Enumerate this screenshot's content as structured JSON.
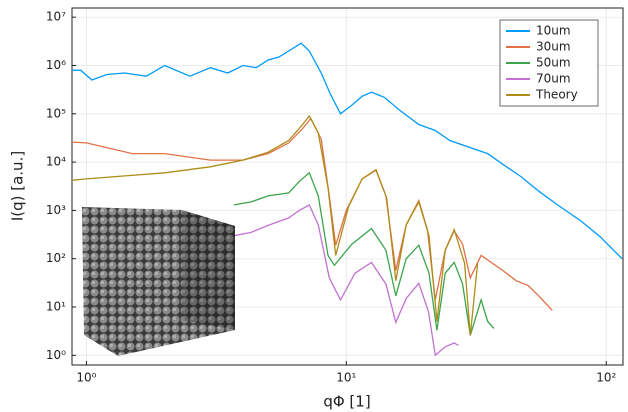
{
  "chart_data": {
    "type": "line",
    "xlabel": "qΦ [1]",
    "ylabel": "I(q) [a.u.]",
    "xscale": "log",
    "yscale": "log",
    "grid": true,
    "legend": "top-right",
    "xlim": [
      0.88,
      116
    ],
    "ylim": [
      0.63,
      15500000
    ],
    "xticks": [
      {
        "value": 1,
        "label": "10⁰"
      },
      {
        "value": 10,
        "label": "10¹"
      },
      {
        "value": 100,
        "label": "10²"
      }
    ],
    "yticks": [
      {
        "value": 1,
        "label": "10⁰"
      },
      {
        "value": 10,
        "label": "10¹"
      },
      {
        "value": 100,
        "label": "10²"
      },
      {
        "value": 1000,
        "label": "10³"
      },
      {
        "value": 10000,
        "label": "10⁴"
      },
      {
        "value": 100000,
        "label": "10⁵"
      },
      {
        "value": 1000000,
        "label": "10⁶"
      },
      {
        "value": 10000000,
        "label": "10⁷"
      }
    ],
    "series": [
      {
        "name": "10um",
        "color": "#009af9",
        "x": [
          0.88,
          0.95,
          1.05,
          1.2,
          1.4,
          1.7,
          2.0,
          2.5,
          3.0,
          3.5,
          4.0,
          4.5,
          5.0,
          5.5,
          6.0,
          6.7,
          7.2,
          8.0,
          8.7,
          9.5,
          10.5,
          11.5,
          12.5,
          14,
          16,
          19,
          22,
          25,
          30,
          35,
          40,
          47,
          55,
          65,
          80,
          95,
          115
        ],
        "values": [
          800000,
          800000,
          500000,
          650000,
          700000,
          600000,
          1000000,
          600000,
          900000,
          700000,
          1000000,
          900000,
          1300000,
          1500000,
          2000000,
          2900000,
          2000000,
          700000,
          250000,
          100000,
          150000,
          230000,
          280000,
          220000,
          120000,
          60000,
          45000,
          28000,
          20000,
          15000,
          9000,
          5000,
          2500,
          1300,
          600,
          280,
          100
        ]
      },
      {
        "name": "30um",
        "color": "#e26f46",
        "x": [
          0.88,
          1.0,
          1.5,
          2.0,
          3.0,
          4.0,
          5.0,
          6.0,
          6.8,
          7.3,
          8.0,
          8.6,
          9.1,
          10.0,
          11.5,
          13,
          14.2,
          15.5,
          17,
          19,
          20.5,
          22,
          24,
          26,
          28,
          30,
          33,
          40,
          45,
          50,
          55,
          62
        ],
        "values": [
          26000,
          25000,
          15000,
          15000,
          11000,
          11000,
          15000,
          25000,
          50000,
          80000,
          30000,
          2000,
          190,
          1000,
          4500,
          6800,
          2000,
          57,
          500,
          1600,
          400,
          14,
          150,
          380,
          200,
          40,
          117,
          57,
          35,
          28,
          17,
          8.5
        ]
      },
      {
        "name": "50um",
        "color": "#3da44d",
        "x": [
          3.7,
          4.3,
          5.0,
          6.0,
          6.6,
          7.2,
          7.8,
          8.5,
          9.0,
          10.5,
          12.5,
          14.2,
          15.5,
          17,
          19,
          20.8,
          22.3,
          24,
          26,
          28,
          30,
          33,
          35,
          37
        ],
        "values": [
          1300,
          1500,
          2000,
          2300,
          4000,
          6000,
          2000,
          117,
          73,
          200,
          420,
          150,
          17,
          100,
          190,
          50,
          3.3,
          50,
          84,
          30,
          2.6,
          14,
          5,
          3.6
        ]
      },
      {
        "name": "70um",
        "color": "#c271d2",
        "x": [
          3.7,
          4.3,
          5.0,
          6.0,
          6.6,
          7.2,
          7.8,
          8.6,
          9.5,
          10.8,
          12.5,
          14.2,
          15.5,
          17,
          19,
          20.7,
          22,
          24,
          26,
          27
        ],
        "values": [
          300,
          350,
          490,
          700,
          1000,
          1300,
          500,
          40,
          14,
          50,
          84,
          30,
          4.8,
          15,
          31,
          8,
          1,
          1.5,
          1.8,
          1.6
        ]
      },
      {
        "name": "Theory",
        "color": "#ac8d18",
        "x": [
          0.88,
          1.0,
          2.0,
          3.0,
          4.0,
          5.0,
          6.0,
          6.7,
          7.2,
          7.8,
          8.5,
          9.1,
          10.2,
          11.5,
          13,
          14.3,
          15.5,
          17,
          19,
          20.8,
          22.3,
          24,
          26,
          28.5,
          30,
          32
        ],
        "values": [
          4200,
          4500,
          6000,
          8000,
          11000,
          16000,
          28000,
          55000,
          90000,
          40000,
          3000,
          117,
          1200,
          4500,
          7000,
          1800,
          35,
          500,
          1500,
          300,
          5,
          150,
          400,
          80,
          2.6,
          80
        ]
      }
    ]
  }
}
